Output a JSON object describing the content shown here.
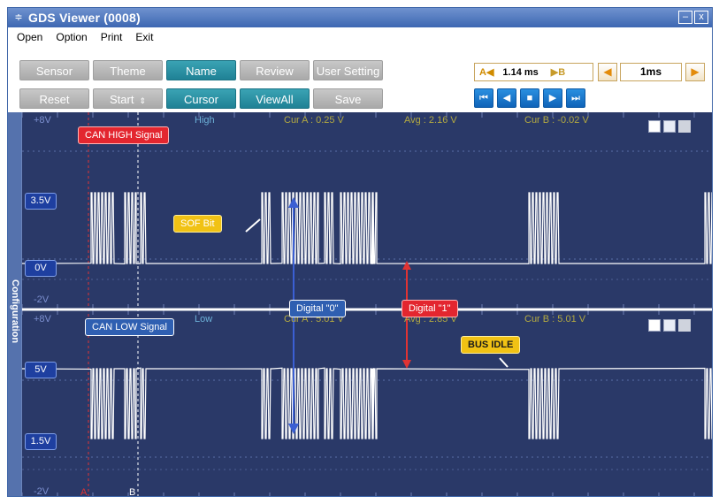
{
  "window": {
    "title": "GDS Viewer (0008)",
    "app_icon": "≑",
    "min_glyph": "–",
    "close_glyph": "x"
  },
  "menu": [
    "Open",
    "Option",
    "Print",
    "Exit"
  ],
  "toolbar": {
    "row1": [
      {
        "label": "Sensor",
        "active": false
      },
      {
        "label": "Theme",
        "active": false
      },
      {
        "label": "Name",
        "active": true
      },
      {
        "label": "Review",
        "active": false
      },
      {
        "label": "User Setting",
        "active": false
      }
    ],
    "row2": [
      {
        "label": "Reset",
        "active": false
      },
      {
        "label": "Start",
        "active": false,
        "spin": "⇕"
      },
      {
        "label": "Cursor",
        "active": true
      },
      {
        "label": "ViewAll",
        "active": true
      },
      {
        "label": "Save",
        "active": false
      }
    ],
    "cursor_a": "A◀",
    "cursor_value": "1.14 ms",
    "cursor_b": "▶B",
    "time_prev": "◀",
    "timebase": "1ms",
    "time_next": "▶",
    "playback": [
      "⏮",
      "◀",
      "■",
      "▶",
      "⏭"
    ]
  },
  "sidebar": {
    "label": "Configuration"
  },
  "channel1": {
    "top": "+8V",
    "bottom": "-2V",
    "level_high": "3.5V",
    "level_low": "0V",
    "name": "CAN HIGH Signal",
    "mode": "High",
    "cur_a": "Cur A : 0.25 V",
    "avg": "Avg : 2.16 V",
    "cur_b": "Cur B : -0.02 V"
  },
  "channel2": {
    "top": "+8V",
    "bottom": "-2V",
    "level_high": "5V",
    "level_low": "1.5V",
    "name": "CAN LOW Signal",
    "mode": "Low",
    "cur_a": "Cur A : 5.01 V",
    "avg": "Avg : 2.85 V",
    "cur_b": "Cur B : 5.01 V"
  },
  "annotations": {
    "sof": "SOF Bit",
    "digital0": "Digital \"0\"",
    "digital1": "Digital \"1\"",
    "bus_idle": "BUS IDLE"
  },
  "cursors": {
    "a": "A",
    "b": "B"
  },
  "colors": {
    "background": "#2a3968",
    "trace": "#ffffff",
    "cursor_a": "#e03333",
    "accent_button": "#1f8195",
    "play_button": "#0f63b8"
  }
}
